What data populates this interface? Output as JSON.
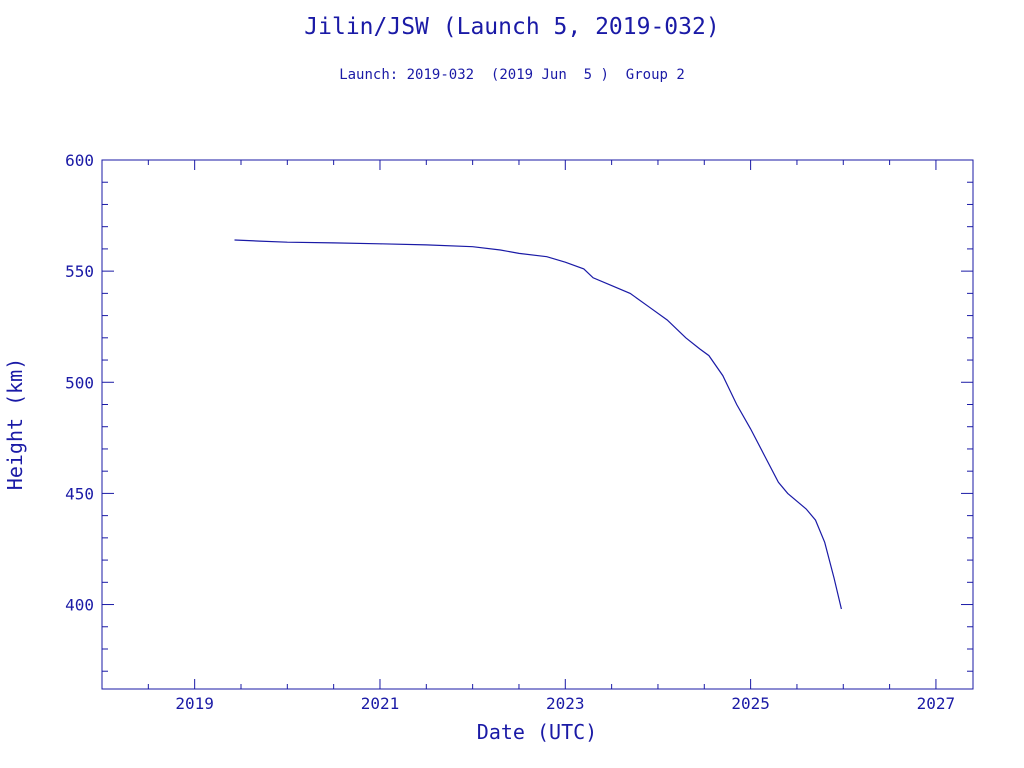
{
  "colors": {
    "ink": "#1a1aa6"
  },
  "chart_data": {
    "type": "line",
    "title": "Jilin/JSW (Launch 5, 2019-032)",
    "subtitle": "Launch: 2019-032  (2019 Jun  5 )  Group 2",
    "xlabel": "Date (UTC)",
    "ylabel": "Height (km)",
    "xlim": [
      2018.0,
      2027.4
    ],
    "ylim": [
      362,
      600
    ],
    "x_major_ticks": [
      2019,
      2021,
      2023,
      2025,
      2027
    ],
    "x_tick_labels": [
      "2019",
      "2021",
      "2023",
      "2025",
      "2027"
    ],
    "y_major_ticks": [
      400,
      450,
      500,
      550,
      600
    ],
    "y_tick_labels": [
      "400",
      "450",
      "500",
      "550",
      "600"
    ],
    "grid": false,
    "legend": "none",
    "series": [
      {
        "x": [
          2019.43,
          2019.7,
          2020.0,
          2020.5,
          2021.0,
          2021.5,
          2022.0,
          2022.3,
          2022.5,
          2022.8,
          2023.0,
          2023.2,
          2023.3,
          2023.5,
          2023.7,
          2023.9,
          2024.1,
          2024.3,
          2024.45,
          2024.55,
          2024.7,
          2024.85,
          2025.0,
          2025.15,
          2025.3,
          2025.4,
          2025.6,
          2025.7,
          2025.8,
          2025.9,
          2025.98
        ],
        "y": [
          564,
          563.5,
          563,
          562.7,
          562.3,
          561.8,
          561,
          559.5,
          558,
          556.5,
          554,
          551,
          547,
          543.5,
          540,
          534,
          528,
          520,
          515,
          512,
          503,
          490,
          479,
          467,
          455,
          450,
          443,
          438,
          428,
          412,
          398
        ]
      }
    ]
  }
}
